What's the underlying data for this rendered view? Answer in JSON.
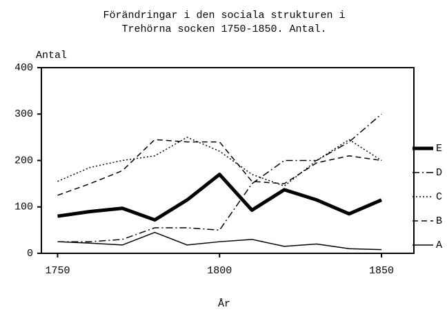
{
  "chart_data": {
    "type": "line",
    "title": [
      "Förändringar i den sociala strukturen i",
      "Trehörna socken 1750-1850. Antal."
    ],
    "y_label": "Antal",
    "x_label": "År",
    "x": [
      1750,
      1760,
      1770,
      1780,
      1790,
      1800,
      1810,
      1820,
      1830,
      1840,
      1850
    ],
    "xlim": [
      1745,
      1860
    ],
    "xticks": [
      1750,
      1800,
      1850
    ],
    "ylim": [
      0,
      400
    ],
    "yticks": [
      0,
      100,
      200,
      300,
      400
    ],
    "series": [
      {
        "name": "E",
        "color": "#000000",
        "dash": "solid",
        "width": 5,
        "values": [
          80,
          90,
          97,
          72,
          115,
          170,
          93,
          137,
          115,
          85,
          115
        ]
      },
      {
        "name": "D",
        "color": "#000000",
        "dash": "dashdot",
        "width": 1.5,
        "values": [
          25,
          25,
          30,
          55,
          55,
          50,
          150,
          200,
          200,
          240,
          300
        ]
      },
      {
        "name": "C",
        "color": "#000000",
        "dash": "dotted",
        "width": 1.5,
        "values": [
          155,
          185,
          200,
          210,
          250,
          220,
          170,
          145,
          200,
          245,
          200
        ]
      },
      {
        "name": "B",
        "color": "#000000",
        "dash": "dashed",
        "width": 1.5,
        "values": [
          125,
          150,
          178,
          245,
          240,
          240,
          155,
          150,
          195,
          210,
          200
        ]
      },
      {
        "name": "A",
        "color": "#000000",
        "dash": "solid",
        "width": 1.5,
        "values": [
          25,
          22,
          18,
          45,
          18,
          25,
          30,
          15,
          20,
          10,
          8
        ]
      }
    ]
  }
}
